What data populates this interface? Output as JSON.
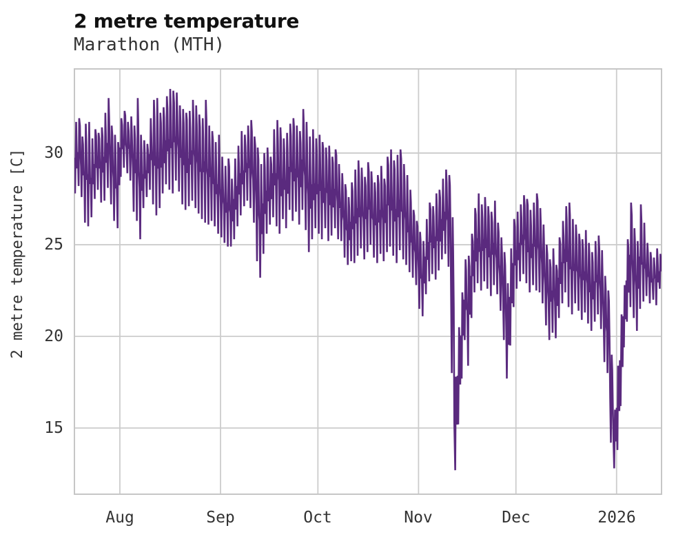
{
  "chart_data": {
    "type": "line",
    "title": "2 metre temperature",
    "subtitle": "Marathon (MTH)",
    "ylabel": "2 metre temperature [C]",
    "xlabel": "",
    "legend": "none",
    "grid": true,
    "line_color": "#5a2a7e",
    "y_ticks": [
      30,
      25,
      20,
      15
    ],
    "ylim": [
      11.39,
      34.59
    ],
    "x_tick_labels": [
      "Aug",
      "Sep",
      "Oct",
      "Nov",
      "Dec",
      "2026"
    ],
    "x_tick_day_offsets": [
      14,
      45,
      75,
      106,
      136,
      167
    ],
    "xlim_days": [
      0,
      180.85
    ],
    "x_start_date": "2025-07-18",
    "x_end_date": "2026-01-14",
    "sampling_note": "daily minimum and maximum temperature [C] read from the plotted hourly series, one pair per day starting 2025-07-18",
    "daily_tmin": [
      27.8,
      28.2,
      27.6,
      26.2,
      26.0,
      26.5,
      27.5,
      28.0,
      27.3,
      27.4,
      28.1,
      27.2,
      26.3,
      25.9,
      28.7,
      29.2,
      28.9,
      28.5,
      26.8,
      26.3,
      25.3,
      27.0,
      27.6,
      28.0,
      27.2,
      26.6,
      27.0,
      27.8,
      28.3,
      28.0,
      27.8,
      28.5,
      27.9,
      27.2,
      26.9,
      27.1,
      27.4,
      27.0,
      26.7,
      26.4,
      26.2,
      26.1,
      26.3,
      26.0,
      25.6,
      25.4,
      25.1,
      24.9,
      24.9,
      25.3,
      26.0,
      26.6,
      27.1,
      27.4,
      27.0,
      26.2,
      24.1,
      23.2,
      24.5,
      25.6,
      26.1,
      26.5,
      26.0,
      25.6,
      26.4,
      25.9,
      26.9,
      26.3,
      26.8,
      26.1,
      26.9,
      25.8,
      24.6,
      25.3,
      25.9,
      25.6,
      25.3,
      25.9,
      25.2,
      25.5,
      25.9,
      25.3,
      25.2,
      24.3,
      23.9,
      24.1,
      24.0,
      24.4,
      24.8,
      24.2,
      24.6,
      25.0,
      24.3,
      24.0,
      24.5,
      24.1,
      24.6,
      24.9,
      24.4,
      24.0,
      24.7,
      24.2,
      23.9,
      23.5,
      23.2,
      22.8,
      21.5,
      21.1,
      22.3,
      23.0,
      23.4,
      23.1,
      23.6,
      24.2,
      24.5,
      23.8,
      18.0,
      12.7,
      15.2,
      17.7,
      19.8,
      18.4,
      21.0,
      22.4,
      22.9,
      22.5,
      23.0,
      22.6,
      22.2,
      22.8,
      22.3,
      21.4,
      19.8,
      17.7,
      19.5,
      21.6,
      22.6,
      23.0,
      23.4,
      22.9,
      22.4,
      22.8,
      22.5,
      22.4,
      21.8,
      20.6,
      19.8,
      20.2,
      19.9,
      21.0,
      21.8,
      22.4,
      21.6,
      21.2,
      21.8,
      21.4,
      20.9,
      21.3,
      20.7,
      20.3,
      20.8,
      21.2,
      20.4,
      18.6,
      18.0,
      14.2,
      12.8,
      13.8,
      16.2,
      19.4,
      20.8,
      21.6,
      21.0,
      20.3,
      21.5,
      21.9,
      22.2,
      21.8,
      22.0,
      21.7,
      22.6
    ],
    "daily_tmax": [
      31.7,
      31.9,
      30.9,
      31.6,
      31.7,
      30.8,
      31.3,
      31.1,
      31.4,
      32.2,
      33.0,
      31.5,
      31.0,
      30.6,
      31.9,
      32.3,
      31.7,
      32.0,
      31.5,
      33.0,
      31.0,
      30.7,
      30.5,
      31.9,
      32.9,
      33.0,
      32.2,
      32.5,
      33.1,
      33.5,
      33.4,
      33.3,
      32.6,
      32.4,
      32.2,
      32.3,
      32.9,
      32.6,
      32.1,
      31.9,
      32.9,
      31.5,
      31.2,
      30.6,
      31.0,
      29.8,
      29.3,
      29.7,
      28.6,
      29.7,
      30.4,
      31.2,
      31.0,
      31.5,
      31.8,
      30.9,
      30.3,
      29.4,
      30.0,
      30.3,
      29.8,
      31.3,
      31.8,
      31.4,
      30.8,
      31.1,
      31.6,
      31.9,
      31.5,
      31.2,
      32.4,
      31.7,
      30.9,
      31.3,
      30.8,
      31.0,
      30.6,
      30.3,
      30.4,
      29.8,
      30.2,
      29.4,
      28.9,
      28.3,
      27.6,
      28.4,
      29.1,
      29.6,
      29.2,
      28.7,
      29.5,
      29.0,
      28.4,
      28.8,
      29.3,
      28.6,
      29.8,
      30.2,
      29.6,
      29.9,
      30.2,
      29.4,
      28.8,
      28.0,
      26.9,
      26.3,
      25.7,
      25.2,
      26.4,
      27.3,
      27.1,
      27.8,
      28.0,
      28.6,
      29.1,
      28.8,
      26.5,
      17.8,
      20.5,
      22.4,
      24.2,
      24.4,
      25.6,
      27.0,
      27.8,
      27.2,
      27.6,
      27.1,
      26.8,
      27.4,
      26.2,
      25.4,
      24.6,
      22.9,
      24.8,
      26.4,
      26.8,
      27.2,
      27.7,
      27.5,
      26.9,
      27.3,
      27.8,
      27.0,
      26.1,
      25.0,
      24.2,
      24.8,
      23.9,
      25.4,
      26.3,
      27.1,
      27.3,
      26.4,
      26.1,
      25.6,
      25.3,
      25.8,
      25.1,
      24.6,
      25.2,
      25.5,
      24.7,
      23.3,
      22.5,
      19.0,
      16.0,
      18.4,
      21.2,
      22.8,
      25.3,
      27.3,
      25.9,
      25.2,
      27.2,
      26.2,
      25.1,
      24.6,
      24.3,
      24.8,
      24.5
    ]
  },
  "colors": {
    "background": "#ffffff",
    "line": "#5a2a7e",
    "grid": "#cccccc",
    "border": "#c6c6c6",
    "title_text": "#111111",
    "tick_text": "#333333"
  }
}
